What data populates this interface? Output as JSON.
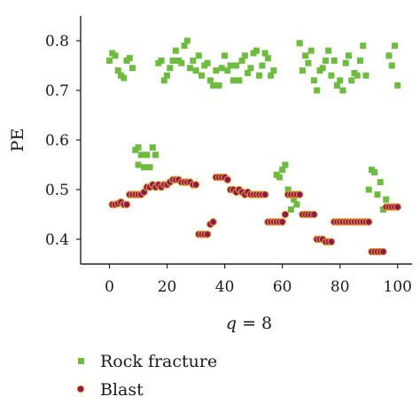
{
  "chart_data": {
    "type": "scatter",
    "xlabel_prefix": "q",
    "xlabel_suffix": " = 8",
    "ylabel": "PE",
    "xlim": [
      -10,
      105
    ],
    "ylim": [
      0.35,
      0.85
    ],
    "xticks": [
      0,
      20,
      40,
      60,
      80,
      100
    ],
    "yticks": [
      0.4,
      0.5,
      0.6,
      0.7,
      0.8
    ],
    "ytick_labels": [
      "0.4",
      "0.5",
      "0.6",
      "0.7",
      "0.8"
    ],
    "grid": false,
    "legend_position": "bottom-left",
    "series": [
      {
        "name": "Rock fracture",
        "marker": "square",
        "color": "#6dbb3f",
        "x": [
          0,
          1,
          2,
          3,
          4,
          5,
          6,
          7,
          8,
          9,
          10,
          10,
          11,
          12,
          13,
          14,
          15,
          16,
          17,
          18,
          19,
          20,
          21,
          22,
          23,
          24,
          25,
          26,
          27,
          28,
          29,
          30,
          31,
          32,
          33,
          34,
          35,
          36,
          37,
          38,
          39,
          40,
          41,
          42,
          43,
          44,
          45,
          46,
          47,
          48,
          49,
          50,
          51,
          52,
          53,
          54,
          55,
          56,
          57,
          58,
          59,
          60,
          61,
          62,
          63,
          64,
          65,
          66,
          67,
          68,
          69,
          70,
          71,
          72,
          73,
          74,
          75,
          76,
          77,
          78,
          79,
          80,
          81,
          82,
          83,
          84,
          85,
          86,
          87,
          88,
          89,
          90,
          91,
          92,
          93,
          94,
          95,
          96,
          97,
          98,
          99,
          100
        ],
        "y": [
          0.76,
          0.775,
          0.77,
          0.74,
          0.73,
          0.725,
          0.76,
          0.765,
          0.745,
          0.58,
          0.585,
          0.55,
          0.57,
          0.545,
          0.57,
          0.545,
          0.585,
          0.57,
          0.755,
          0.76,
          0.72,
          0.73,
          0.745,
          0.76,
          0.78,
          0.76,
          0.755,
          0.79,
          0.8,
          0.745,
          0.76,
          0.74,
          0.77,
          0.73,
          0.75,
          0.755,
          0.72,
          0.71,
          0.74,
          0.71,
          0.745,
          0.77,
          0.74,
          0.75,
          0.72,
          0.75,
          0.72,
          0.76,
          0.77,
          0.735,
          0.745,
          0.775,
          0.78,
          0.73,
          0.75,
          0.775,
          0.765,
          0.73,
          0.74,
          0.53,
          0.525,
          0.54,
          0.55,
          0.5,
          0.46,
          0.48,
          0.47,
          0.795,
          0.74,
          0.77,
          0.755,
          0.78,
          0.72,
          0.7,
          0.74,
          0.745,
          0.76,
          0.78,
          0.73,
          0.76,
          0.71,
          0.72,
          0.7,
          0.755,
          0.77,
          0.72,
          0.735,
          0.73,
          0.76,
          0.79,
          0.73,
          0.5,
          0.54,
          0.535,
          0.49,
          0.515,
          0.46,
          0.48,
          0.77,
          0.75,
          0.79,
          0.71
        ]
      },
      {
        "name": "Blast",
        "marker": "circle",
        "color": "#8a1a50",
        "x": [
          1,
          2,
          3,
          4,
          5,
          6,
          7,
          8,
          9,
          10,
          11,
          12,
          13,
          14,
          15,
          16,
          17,
          18,
          19,
          20,
          21,
          22,
          23,
          24,
          25,
          26,
          27,
          28,
          29,
          30,
          31,
          32,
          33,
          34,
          35,
          36,
          37,
          38,
          39,
          40,
          41,
          42,
          43,
          44,
          45,
          46,
          47,
          48,
          49,
          50,
          51,
          52,
          53,
          54,
          55,
          56,
          57,
          58,
          59,
          60,
          61,
          62,
          63,
          64,
          65,
          66,
          67,
          68,
          69,
          70,
          71,
          72,
          73,
          74,
          75,
          76,
          77,
          78,
          79,
          80,
          81,
          82,
          83,
          84,
          85,
          86,
          87,
          88,
          89,
          90,
          91,
          92,
          93,
          94,
          95,
          96,
          97,
          98,
          99,
          100
        ],
        "y": [
          0.47,
          0.47,
          0.472,
          0.475,
          0.47,
          0.47,
          0.49,
          0.49,
          0.49,
          0.49,
          0.49,
          0.495,
          0.505,
          0.505,
          0.51,
          0.505,
          0.51,
          0.505,
          0.51,
          0.51,
          0.515,
          0.52,
          0.52,
          0.52,
          0.515,
          0.515,
          0.515,
          0.515,
          0.51,
          0.51,
          0.41,
          0.41,
          0.41,
          0.41,
          0.43,
          0.435,
          0.525,
          0.525,
          0.525,
          0.525,
          0.52,
          0.5,
          0.5,
          0.495,
          0.5,
          0.495,
          0.49,
          0.495,
          0.49,
          0.49,
          0.49,
          0.49,
          0.49,
          0.49,
          0.435,
          0.435,
          0.435,
          0.435,
          0.435,
          0.435,
          0.45,
          0.49,
          0.49,
          0.49,
          0.49,
          0.49,
          0.45,
          0.45,
          0.45,
          0.45,
          0.45,
          0.4,
          0.4,
          0.4,
          0.395,
          0.395,
          0.395,
          0.435,
          0.435,
          0.435,
          0.435,
          0.435,
          0.435,
          0.435,
          0.435,
          0.435,
          0.435,
          0.435,
          0.435,
          0.435,
          0.375,
          0.375,
          0.375,
          0.375,
          0.375,
          0.465,
          0.465,
          0.465,
          0.465,
          0.465
        ]
      }
    ]
  }
}
